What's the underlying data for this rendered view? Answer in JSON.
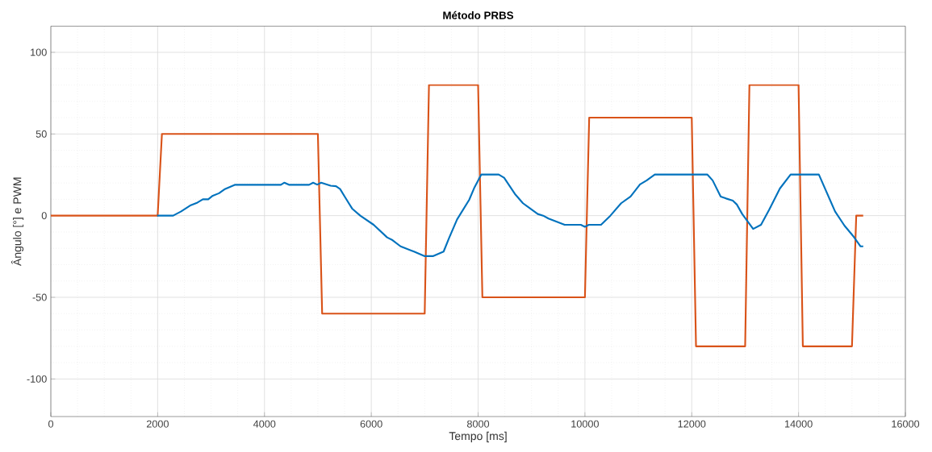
{
  "chart_data": {
    "type": "line",
    "title": "Método PRBS",
    "xlabel": "Tempo [ms]",
    "ylabel": "Ângulo [°] e PWM",
    "xlim": [
      0,
      16000
    ],
    "ylim": [
      -123,
      116
    ],
    "xticks": [
      0,
      2000,
      4000,
      6000,
      8000,
      10000,
      12000,
      14000,
      16000
    ],
    "yticks": [
      -100,
      -50,
      0,
      50,
      100
    ],
    "grid": true,
    "marker": "none",
    "line_style": "solid",
    "series": [
      {
        "color": "#d95319",
        "x": [
          0,
          2000,
          2080,
          5000,
          5080,
          7000,
          7080,
          8000,
          8080,
          10000,
          10080,
          12000,
          12080,
          13000,
          13080,
          14000,
          14080,
          15000,
          15080,
          15210
        ],
        "values": [
          0,
          0,
          50,
          50,
          -60,
          -60,
          80,
          80,
          -50,
          -50,
          60,
          60,
          -80,
          -80,
          80,
          80,
          -80,
          -80,
          0,
          0
        ]
      },
      {
        "color": "#0072bd",
        "x": [
          1990,
          2290,
          2440,
          2620,
          2745,
          2846,
          2947,
          3022,
          3148,
          3249,
          3451,
          4307,
          4373,
          4458,
          4835,
          4911,
          4987,
          5062,
          5239,
          5340,
          5416,
          5516,
          5642,
          5793,
          6044,
          6296,
          6397,
          6548,
          6800,
          7001,
          7153,
          7354,
          7455,
          7606,
          7833,
          7933,
          8060,
          8386,
          8487,
          8689,
          8840,
          9117,
          9218,
          9318,
          9621,
          9923,
          9999,
          10074,
          10301,
          10477,
          10678,
          10855,
          11031,
          11157,
          11308,
          12290,
          12391,
          12542,
          12643,
          12769,
          12845,
          12945,
          13150,
          13297,
          13448,
          13650,
          13851,
          14380,
          14683,
          14859,
          15035,
          15161,
          15211
        ],
        "values": [
          0,
          0,
          2.6,
          6.4,
          8,
          10,
          10,
          12,
          13.7,
          16.1,
          18.9,
          18.9,
          20.2,
          18.9,
          18.9,
          20.2,
          19,
          20.2,
          18.3,
          18,
          16.3,
          10.9,
          4.3,
          0,
          -5.6,
          -13.3,
          -15,
          -18.8,
          -22,
          -24.8,
          -24.8,
          -22,
          -13.8,
          -2.3,
          9.7,
          17.4,
          25.2,
          25.2,
          23.2,
          13.3,
          7.6,
          1,
          0,
          -1.8,
          -5.6,
          -5.6,
          -6.8,
          -5.6,
          -5.6,
          0,
          7.6,
          11.7,
          19.1,
          21.6,
          25.2,
          25.2,
          21.6,
          11.7,
          10.5,
          9.2,
          6.8,
          1,
          -8.1,
          -5.6,
          3.5,
          16.6,
          25.2,
          25.2,
          2.6,
          -6.1,
          -13,
          -18.8,
          -18.8
        ]
      }
    ]
  }
}
